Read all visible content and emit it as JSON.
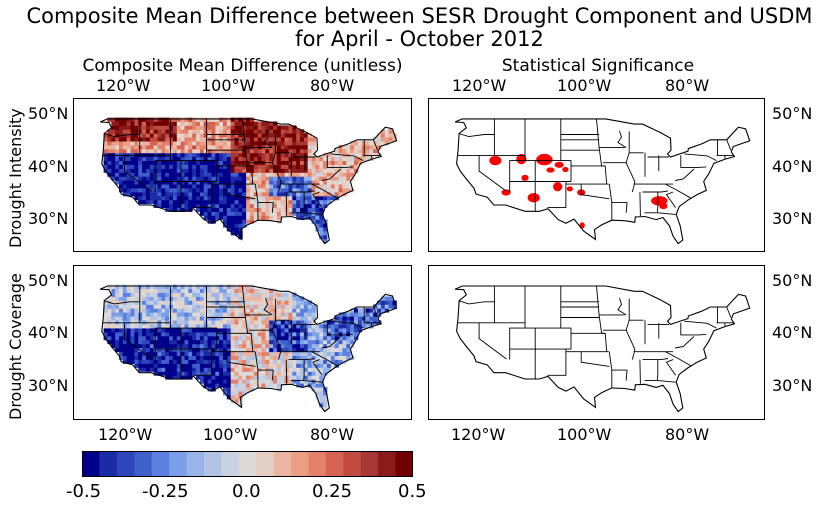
{
  "title_line1": "Composite Mean Difference between SESR Drought Component and USDM",
  "title_line2": "for April - October 2012",
  "col_titles": [
    "Composite Mean Difference (unitless)",
    "Statistical Significance"
  ],
  "row_labels": [
    "Drought Intensity",
    "Drought Coverage"
  ],
  "lon_ticks": [
    "120°W",
    "100°W",
    "80°W"
  ],
  "lat_ticks": [
    "50°N",
    "40°N",
    "30°N"
  ],
  "colorbar": {
    "ticks": [
      "-0.5",
      "-0.25",
      "0.0",
      "0.25",
      "0.5"
    ],
    "min": -0.5,
    "max": 0.5,
    "colors": [
      "#00008b",
      "#1a2ba5",
      "#2d46b9",
      "#3f5fcb",
      "#5b80df",
      "#7aa0ea",
      "#98b4e8",
      "#b2c3e4",
      "#c9d2e1",
      "#dcd9d6",
      "#e6cfc4",
      "#eab6a3",
      "#eb9e86",
      "#e3816a",
      "#d56552",
      "#c14b40",
      "#a83632",
      "#8b1a1a",
      "#700000"
    ]
  },
  "maps": {
    "projection": "PlateCarree",
    "lon_range": [
      -130,
      -64
    ],
    "lat_range": [
      23.5,
      53
    ],
    "region": "CONUS",
    "significance_color": "#ff0000",
    "panels": [
      {
        "row": "Drought Intensity",
        "type": "composite difference"
      },
      {
        "row": "Drought Intensity",
        "type": "significance",
        "significant_regions": [
          "Nevada",
          "Utah",
          "Colorado",
          "Arizona / New Mexico",
          "Southern Plains",
          "Southeast",
          "Florida"
        ]
      },
      {
        "row": "Drought Coverage",
        "type": "composite difference"
      },
      {
        "row": "Drought Coverage",
        "type": "significance",
        "significant_regions": []
      }
    ]
  }
}
